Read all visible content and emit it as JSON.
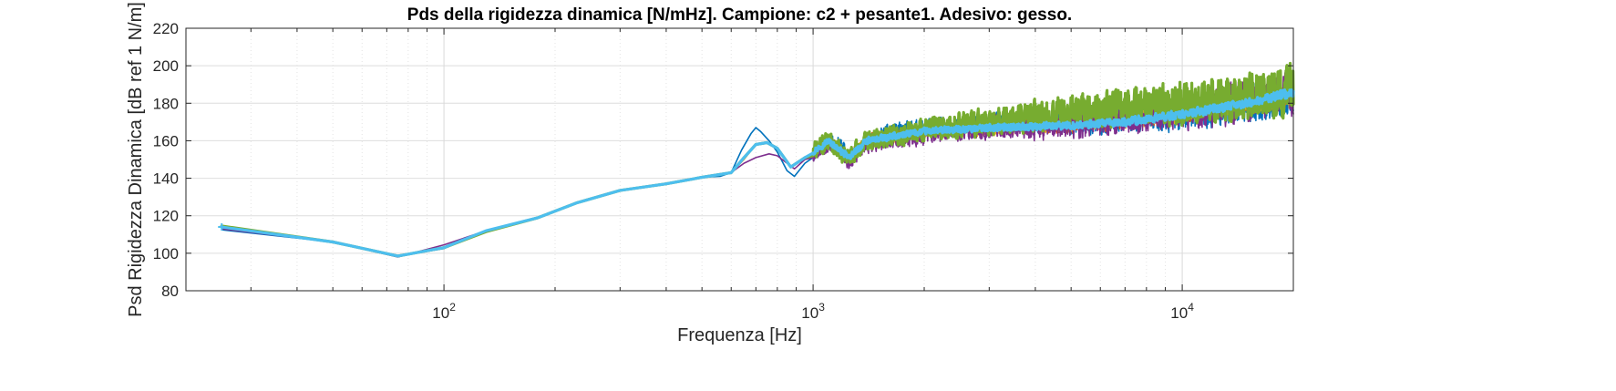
{
  "chart_data": {
    "type": "line",
    "title": "Pds della rigidezza dinamica [N/mHz]. Campione: c2 + pesante1. Adesivo: gesso.",
    "xlabel": "Frequenza [Hz]",
    "ylabel": "Psd Rigidezza Dinamica [dB ref 1 N/m]",
    "xscale": "log",
    "xlim": [
      20,
      20000
    ],
    "ylim": [
      80,
      220
    ],
    "yticks": [
      80,
      100,
      120,
      140,
      160,
      180,
      200,
      220
    ],
    "xticks": [
      {
        "value": 100,
        "base": "10",
        "exp": "2"
      },
      {
        "value": 1000,
        "base": "10",
        "exp": "3"
      },
      {
        "value": 10000,
        "base": "10",
        "exp": "4"
      }
    ],
    "grid": true,
    "noise_start_hz": 1000,
    "series": [
      {
        "color": "#0072BD",
        "width": 1.6,
        "noise_amp": 5,
        "hf_amp": 14,
        "seed": 11,
        "points": [
          [
            25,
            112.5
          ],
          [
            50,
            106
          ],
          [
            75,
            98.5
          ],
          [
            100,
            102.5
          ],
          [
            130,
            112
          ],
          [
            180,
            119
          ],
          [
            230,
            127
          ],
          [
            300,
            133.5
          ],
          [
            400,
            137
          ],
          [
            500,
            140.5
          ],
          [
            560,
            141
          ],
          [
            600,
            143
          ],
          [
            640,
            155
          ],
          [
            680,
            164
          ],
          [
            700,
            167
          ],
          [
            720,
            165
          ],
          [
            760,
            160
          ],
          [
            800,
            154
          ],
          [
            850,
            144
          ],
          [
            890,
            141
          ],
          [
            950,
            148
          ],
          [
            1000,
            153
          ],
          [
            1100,
            160
          ],
          [
            1200,
            157
          ],
          [
            1250,
            150
          ],
          [
            1400,
            160
          ],
          [
            1600,
            164
          ],
          [
            2000,
            167
          ],
          [
            3000,
            168
          ],
          [
            4000,
            170
          ],
          [
            6000,
            171
          ],
          [
            10000,
            175
          ],
          [
            15000,
            180
          ],
          [
            20000,
            183
          ]
        ]
      },
      {
        "color": "#D95319",
        "width": 1.4,
        "noise_amp": 4,
        "hf_amp": 9,
        "seed": 23,
        "points": [
          [
            25,
            114
          ],
          [
            50,
            106
          ],
          [
            75,
            98.5
          ],
          [
            100,
            103
          ],
          [
            130,
            112
          ],
          [
            180,
            119
          ],
          [
            230,
            127
          ],
          [
            300,
            133.5
          ],
          [
            400,
            137
          ],
          [
            500,
            140.5
          ],
          [
            600,
            143
          ],
          [
            650,
            150
          ],
          [
            700,
            158
          ],
          [
            750,
            159
          ],
          [
            800,
            156
          ],
          [
            870,
            146
          ],
          [
            950,
            151
          ],
          [
            1100,
            160
          ],
          [
            1250,
            151
          ],
          [
            1400,
            160
          ],
          [
            2000,
            165
          ],
          [
            3000,
            167
          ],
          [
            5000,
            169
          ],
          [
            10000,
            175
          ],
          [
            20000,
            186
          ]
        ]
      },
      {
        "color": "#EDB120",
        "width": 1.4,
        "noise_amp": 4,
        "hf_amp": 9,
        "seed": 37,
        "points": [
          [
            25,
            114
          ],
          [
            50,
            106
          ],
          [
            75,
            98.5
          ],
          [
            100,
            103
          ],
          [
            130,
            112
          ],
          [
            180,
            119
          ],
          [
            230,
            127
          ],
          [
            300,
            133.5
          ],
          [
            400,
            137
          ],
          [
            500,
            140.5
          ],
          [
            600,
            143
          ],
          [
            650,
            150
          ],
          [
            700,
            158
          ],
          [
            750,
            159
          ],
          [
            800,
            156
          ],
          [
            870,
            146
          ],
          [
            950,
            151
          ],
          [
            1100,
            160
          ],
          [
            1250,
            151
          ],
          [
            1400,
            160
          ],
          [
            2000,
            165
          ],
          [
            3000,
            167
          ],
          [
            5000,
            170
          ],
          [
            10000,
            175
          ],
          [
            20000,
            185
          ]
        ]
      },
      {
        "color": "#7E2F8E",
        "width": 1.6,
        "noise_amp": 5,
        "hf_amp": 15,
        "seed": 53,
        "points": [
          [
            25,
            113
          ],
          [
            50,
            106
          ],
          [
            75,
            98
          ],
          [
            100,
            104.5
          ],
          [
            130,
            112
          ],
          [
            180,
            119
          ],
          [
            230,
            127
          ],
          [
            300,
            133.5
          ],
          [
            400,
            137
          ],
          [
            500,
            140.5
          ],
          [
            600,
            143
          ],
          [
            650,
            148
          ],
          [
            700,
            151
          ],
          [
            760,
            153
          ],
          [
            800,
            152
          ],
          [
            850,
            148
          ],
          [
            890,
            145
          ],
          [
            950,
            150
          ],
          [
            1100,
            158
          ],
          [
            1200,
            154
          ],
          [
            1250,
            148
          ],
          [
            1400,
            158
          ],
          [
            2000,
            163
          ],
          [
            3000,
            167
          ],
          [
            5000,
            168
          ],
          [
            10000,
            175
          ],
          [
            20000,
            185
          ]
        ]
      },
      {
        "color": "#77AC30",
        "width": 3.2,
        "noise_amp": 6,
        "hf_amp": 17,
        "seed": 71,
        "points": [
          [
            25,
            114.5
          ],
          [
            50,
            106
          ],
          [
            75,
            98.5
          ],
          [
            100,
            103
          ],
          [
            130,
            111.5
          ],
          [
            180,
            119
          ],
          [
            230,
            127
          ],
          [
            300,
            133.5
          ],
          [
            400,
            137
          ],
          [
            500,
            140.5
          ],
          [
            600,
            143
          ],
          [
            650,
            151
          ],
          [
            700,
            158
          ],
          [
            750,
            159
          ],
          [
            800,
            156
          ],
          [
            870,
            146
          ],
          [
            950,
            151
          ],
          [
            1100,
            160
          ],
          [
            1250,
            151
          ],
          [
            1400,
            160
          ],
          [
            2000,
            166
          ],
          [
            3000,
            170
          ],
          [
            4000,
            173
          ],
          [
            5000,
            176
          ],
          [
            8000,
            178
          ],
          [
            12000,
            182
          ],
          [
            20000,
            188
          ]
        ]
      },
      {
        "color": "#4DBEEE",
        "width": 3.2,
        "noise_amp": 2,
        "hf_amp": 3,
        "seed": 97,
        "markers": true,
        "points": [
          [
            25,
            114
          ],
          [
            50,
            106
          ],
          [
            75,
            98.5
          ],
          [
            100,
            103
          ],
          [
            130,
            112
          ],
          [
            180,
            119
          ],
          [
            230,
            127
          ],
          [
            300,
            133.5
          ],
          [
            400,
            137
          ],
          [
            500,
            140.5
          ],
          [
            600,
            143
          ],
          [
            650,
            151
          ],
          [
            700,
            158
          ],
          [
            750,
            159
          ],
          [
            800,
            156
          ],
          [
            870,
            146
          ],
          [
            950,
            151
          ],
          [
            1100,
            160
          ],
          [
            1250,
            151
          ],
          [
            1400,
            160
          ],
          [
            2000,
            165
          ],
          [
            3000,
            167
          ],
          [
            5000,
            168
          ],
          [
            7000,
            170
          ],
          [
            10000,
            174
          ],
          [
            15000,
            180
          ],
          [
            20000,
            186
          ]
        ]
      }
    ]
  }
}
